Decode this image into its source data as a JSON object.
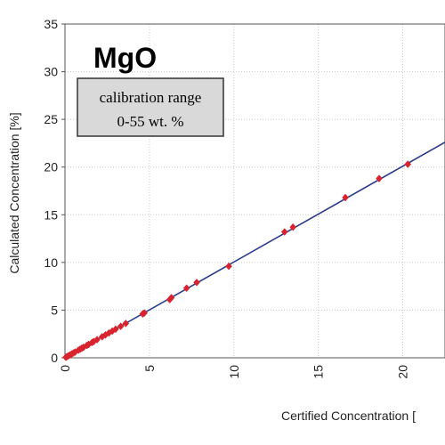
{
  "chart_data": {
    "type": "scatter",
    "title": "MgO",
    "annotation": [
      "calibration range",
      "0-55 wt. %"
    ],
    "xlabel": "Certified Concentration [",
    "ylabel": "Calculated Concentration [%]",
    "xlim": [
      0,
      22.5
    ],
    "ylim": [
      0,
      35
    ],
    "xticks": [
      0,
      5,
      10,
      15,
      20
    ],
    "yticks": [
      0,
      5,
      10,
      15,
      20,
      25,
      30,
      35
    ],
    "grid": true,
    "series": [
      {
        "kind": "points",
        "color": "#d9232e",
        "x": [
          0.05,
          0.1,
          0.2,
          0.3,
          0.4,
          0.5,
          0.6,
          0.8,
          0.9,
          1.0,
          1.1,
          1.3,
          1.4,
          1.6,
          1.7,
          1.9,
          2.2,
          2.4,
          2.6,
          2.8,
          3.0,
          3.3,
          3.6,
          4.6,
          4.7,
          6.2,
          6.3,
          7.2,
          7.8,
          9.7,
          13.0,
          13.5,
          16.6,
          18.6,
          20.3
        ],
        "y": [
          0.05,
          0.1,
          0.2,
          0.3,
          0.4,
          0.5,
          0.6,
          0.8,
          0.9,
          1.0,
          1.1,
          1.3,
          1.4,
          1.6,
          1.7,
          1.9,
          2.2,
          2.4,
          2.6,
          2.8,
          3.0,
          3.3,
          3.6,
          4.6,
          4.7,
          6.1,
          6.3,
          7.3,
          7.9,
          9.6,
          13.2,
          13.7,
          16.8,
          18.8,
          20.3
        ]
      },
      {
        "kind": "line",
        "color": "#2b3a8c",
        "x": [
          0,
          22.5
        ],
        "y": [
          0,
          22.6
        ]
      }
    ]
  }
}
